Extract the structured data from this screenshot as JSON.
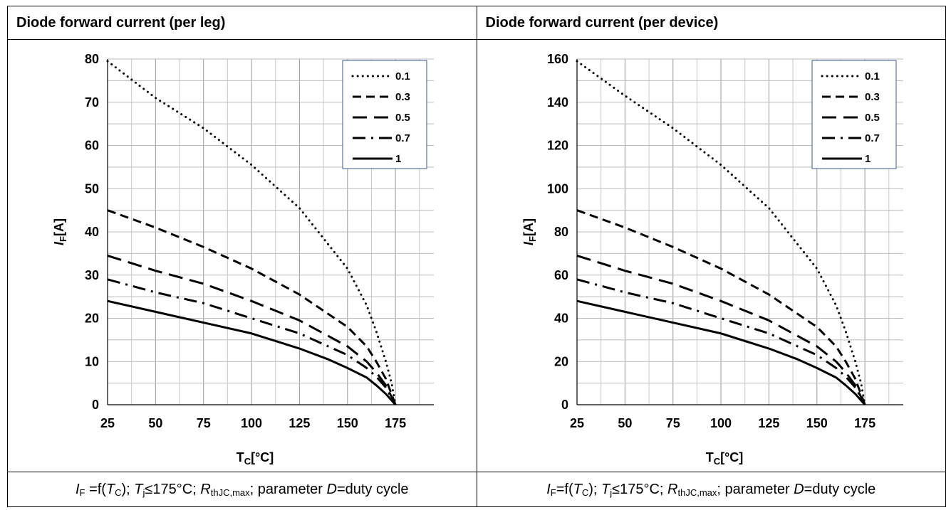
{
  "panels": [
    {
      "header": "Diode forward current (per leg)",
      "caption": {
        "if": "I",
        "if_sub": "F",
        "eq": " =f(",
        "tc": "T",
        "tc_sub": "C",
        "p1": "); ",
        "tj": "T",
        "tj_sub": "j",
        "p2": "≤175°C; ",
        "rth": "R",
        "rth_sub": "thJC,max",
        "p3": "; parameter ",
        "d": "D",
        "p4": "=duty cycle"
      }
    },
    {
      "header": "Diode forward current (per device)",
      "caption": {
        "if": "I",
        "if_sub": "F",
        "eq": "=f(",
        "tc": "T",
        "tc_sub": "C",
        "p1": "); ",
        "tj": "T",
        "tj_sub": "j",
        "p2": "≤175°C; ",
        "rth": "R",
        "rth_sub": "thJC,max",
        "p3": "; parameter ",
        "d": "D",
        "p4": "=duty cycle"
      }
    }
  ],
  "chart_data": [
    {
      "type": "line",
      "xlabel": "T",
      "xlabel_sub": "C",
      "xlabel_unit": "[°C]",
      "ylabel": "I",
      "ylabel_sub": "F",
      "ylabel_unit": "[A]",
      "xlim": [
        25,
        195
      ],
      "ylim": [
        0,
        80
      ],
      "xticks": [
        25,
        50,
        75,
        100,
        125,
        150,
        175
      ],
      "yticks": [
        0,
        10,
        20,
        30,
        40,
        50,
        60,
        70,
        80
      ],
      "grid": true,
      "legend": "top-right",
      "series": [
        {
          "name": "0.1",
          "dash": "dot",
          "x": [
            25,
            50,
            75,
            100,
            125,
            150,
            160,
            165,
            170,
            173,
            175
          ],
          "y": [
            79.5,
            71,
            64,
            55.5,
            45.5,
            31.5,
            23,
            17,
            10,
            5,
            0
          ]
        },
        {
          "name": "0.3",
          "dash": "dash-short",
          "x": [
            25,
            50,
            75,
            100,
            125,
            150,
            160,
            165,
            170,
            175
          ],
          "y": [
            45,
            41,
            36.5,
            31.5,
            25.5,
            18,
            13.5,
            10,
            6,
            0
          ]
        },
        {
          "name": "0.5",
          "dash": "dash-long",
          "x": [
            25,
            50,
            75,
            100,
            125,
            150,
            160,
            165,
            170,
            175
          ],
          "y": [
            34.5,
            31,
            28,
            24,
            19.5,
            13.5,
            10,
            7.5,
            4.5,
            0
          ]
        },
        {
          "name": "0.7",
          "dash": "dash-dot",
          "x": [
            25,
            50,
            75,
            100,
            125,
            150,
            160,
            165,
            170,
            175
          ],
          "y": [
            29,
            26,
            23.5,
            20,
            16.5,
            11.5,
            8.5,
            6.5,
            4,
            0
          ]
        },
        {
          "name": "1",
          "dash": "solid",
          "x": [
            25,
            50,
            75,
            100,
            125,
            140,
            150,
            160,
            165,
            170,
            175
          ],
          "y": [
            24,
            21.5,
            19,
            16.5,
            13,
            10.5,
            8.5,
            6.3,
            4.5,
            2.5,
            0
          ]
        }
      ]
    },
    {
      "type": "line",
      "xlabel": "T",
      "xlabel_sub": "C",
      "xlabel_unit": "[°C]",
      "ylabel": "I",
      "ylabel_sub": "F",
      "ylabel_unit": "[A]",
      "xlim": [
        25,
        195
      ],
      "ylim": [
        0,
        160
      ],
      "xticks": [
        25,
        50,
        75,
        100,
        125,
        150,
        175
      ],
      "yticks": [
        0,
        20,
        40,
        60,
        80,
        100,
        120,
        140,
        160
      ],
      "grid": true,
      "legend": "top-right",
      "series": [
        {
          "name": "0.1",
          "dash": "dot",
          "x": [
            25,
            50,
            75,
            100,
            125,
            150,
            160,
            165,
            170,
            173,
            175
          ],
          "y": [
            159,
            143,
            128,
            111,
            91,
            63,
            46,
            34,
            20,
            10,
            0
          ]
        },
        {
          "name": "0.3",
          "dash": "dash-short",
          "x": [
            25,
            50,
            75,
            100,
            125,
            150,
            160,
            165,
            170,
            175
          ],
          "y": [
            90,
            82,
            73,
            63,
            51,
            36,
            27,
            20,
            12,
            0
          ]
        },
        {
          "name": "0.5",
          "dash": "dash-long",
          "x": [
            25,
            50,
            75,
            100,
            125,
            150,
            160,
            165,
            170,
            175
          ],
          "y": [
            69,
            62,
            56,
            48,
            39,
            27,
            20,
            15,
            9,
            0
          ]
        },
        {
          "name": "0.7",
          "dash": "dash-dot",
          "x": [
            25,
            50,
            75,
            100,
            125,
            150,
            160,
            165,
            170,
            175
          ],
          "y": [
            58,
            52,
            47,
            40,
            33,
            23,
            17,
            13,
            8,
            0
          ]
        },
        {
          "name": "1",
          "dash": "solid",
          "x": [
            25,
            50,
            75,
            100,
            125,
            140,
            150,
            160,
            165,
            170,
            175
          ],
          "y": [
            48,
            43,
            38,
            33,
            26,
            21,
            17,
            12.6,
            9,
            5,
            0
          ]
        }
      ]
    }
  ]
}
